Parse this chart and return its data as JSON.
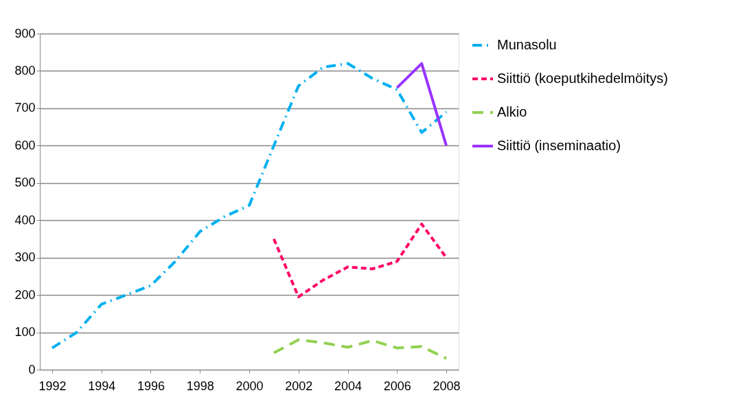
{
  "chart_data": {
    "type": "line",
    "x": [
      1992,
      1993,
      1994,
      1995,
      1996,
      1997,
      1998,
      1999,
      2000,
      2001,
      2002,
      2003,
      2004,
      2005,
      2006,
      2007,
      2008
    ],
    "series": [
      {
        "name": "Munasolu",
        "color": "#00b0f0",
        "line_style": "dashdot",
        "values": [
          58,
          100,
          175,
          200,
          225,
          290,
          370,
          410,
          440,
          600,
          760,
          810,
          820,
          780,
          750,
          635,
          690
        ]
      },
      {
        "name": "Siittiö (koeputkihedelmöitys)",
        "color": "#ff0066",
        "line_style": "dashed",
        "values": [
          null,
          null,
          null,
          null,
          null,
          null,
          null,
          null,
          null,
          350,
          195,
          240,
          275,
          270,
          290,
          390,
          300
        ]
      },
      {
        "name": "Alkio",
        "color": "#92d050",
        "line_style": "longdash",
        "values": [
          null,
          null,
          null,
          null,
          null,
          null,
          null,
          null,
          null,
          45,
          80,
          72,
          60,
          78,
          58,
          62,
          30
        ]
      },
      {
        "name": "Siittiö (inseminaatio)",
        "color": "#9933ff",
        "line_style": "solid",
        "values": [
          null,
          null,
          null,
          null,
          null,
          null,
          null,
          null,
          null,
          null,
          null,
          null,
          null,
          null,
          755,
          820,
          600
        ]
      }
    ],
    "xlim": [
      1991.5,
      2008.5
    ],
    "xticks": [
      1992,
      1994,
      1996,
      1998,
      2000,
      2002,
      2004,
      2006,
      2008
    ],
    "ylim": [
      0,
      900
    ],
    "yticks": [
      0,
      100,
      200,
      300,
      400,
      500,
      600,
      700,
      800,
      900
    ],
    "grid": "y",
    "legend": "right",
    "marker": "none"
  }
}
